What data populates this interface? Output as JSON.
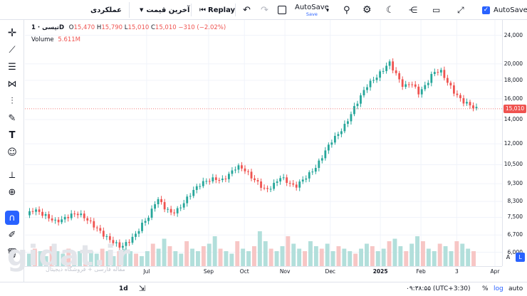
{
  "toolbar": {
    "symbol_search": "عملکردی",
    "price_type": "آخرین قیمت",
    "replay": "Replay",
    "autosave_title": "AutoSave",
    "autosave_sub": "Save",
    "autosave_toggle": "AutoSave"
  },
  "legend": {
    "symbol": "تپسی · 1D",
    "o_label": "O",
    "o_val": "15,470",
    "h_label": "H",
    "h_val": "15,790",
    "l_label": "L",
    "l_val": "15,010",
    "c_label": "C",
    "c_val": "15,010",
    "change": "−310 (−2.02%)",
    "volume_label": "Volume",
    "volume_val": "5.611M"
  },
  "price_axis": {
    "ticks": [
      "24,000",
      "20,000",
      "18,000",
      "16,000",
      "14,000",
      "12,000",
      "10,500",
      "9,300",
      "8,300",
      "7,500",
      "6,700",
      "6,000"
    ],
    "current": "15,010",
    "scale_a": "A",
    "scale_l": "L"
  },
  "time_axis": {
    "ticks": [
      "Jul",
      "Sep",
      "Oct",
      "Nov",
      "Dec",
      "2025",
      "Feb",
      "3",
      "Apr"
    ]
  },
  "bottom": {
    "interval": "1d",
    "clock": "۰۹:۳۸:۵۵ (UTC+3:30)",
    "percent": "%",
    "log": "log",
    "auto": "auto"
  },
  "watermark": {
    "logo": "gidat.ir",
    "subtitle": "مقاله فارسی + فروشگاه دیجیتال"
  },
  "colors": {
    "up": "#26a69a",
    "down": "#ef5350",
    "vol_up": "#b2dfdb",
    "vol_down": "#f7c6c5",
    "accent": "#2962ff"
  },
  "chart_data": {
    "type": "candlestick",
    "x_ticks": [
      "Jul",
      "Sep",
      "Oct",
      "Nov",
      "Dec",
      "2025",
      "Feb",
      "3",
      "Apr"
    ],
    "y_scale": "log",
    "ylim": [
      5800,
      26000
    ],
    "close_path": [
      [
        0,
        7600
      ],
      [
        3,
        7900
      ],
      [
        6,
        7700
      ],
      [
        9,
        7500
      ],
      [
        12,
        7300
      ],
      [
        15,
        7400
      ],
      [
        18,
        7600
      ],
      [
        21,
        7700
      ],
      [
        24,
        7500
      ],
      [
        27,
        7200
      ],
      [
        30,
        6900
      ],
      [
        33,
        6600
      ],
      [
        36,
        6400
      ],
      [
        39,
        6200
      ],
      [
        42,
        6400
      ],
      [
        45,
        6700
      ],
      [
        48,
        7200
      ],
      [
        51,
        7600
      ],
      [
        54,
        8500
      ],
      [
        57,
        8000
      ],
      [
        60,
        7700
      ],
      [
        63,
        7900
      ],
      [
        66,
        8400
      ],
      [
        69,
        8900
      ],
      [
        72,
        9300
      ],
      [
        75,
        9500
      ],
      [
        78,
        9600
      ],
      [
        81,
        9500
      ],
      [
        84,
        9900
      ],
      [
        87,
        10400
      ],
      [
        90,
        10200
      ],
      [
        93,
        9700
      ],
      [
        96,
        9300
      ],
      [
        99,
        8900
      ],
      [
        102,
        9200
      ],
      [
        105,
        9700
      ],
      [
        108,
        9400
      ],
      [
        111,
        9100
      ],
      [
        114,
        9500
      ],
      [
        117,
        9900
      ],
      [
        120,
        10400
      ],
      [
        123,
        11300
      ],
      [
        126,
        12200
      ],
      [
        129,
        12800
      ],
      [
        132,
        13600
      ],
      [
        135,
        14900
      ],
      [
        138,
        16200
      ],
      [
        141,
        17500
      ],
      [
        144,
        18200
      ],
      [
        147,
        19100
      ],
      [
        150,
        20200
      ],
      [
        153,
        18600
      ],
      [
        156,
        17200
      ],
      [
        159,
        17800
      ],
      [
        162,
        16600
      ],
      [
        165,
        17400
      ],
      [
        168,
        18900
      ],
      [
        171,
        19200
      ],
      [
        174,
        17800
      ],
      [
        177,
        16600
      ],
      [
        180,
        15800
      ],
      [
        183,
        15400
      ],
      [
        186,
        15010
      ]
    ],
    "volume_relative": [
      0.25,
      0.35,
      0.3,
      0.2,
      0.4,
      0.3,
      0.25,
      0.35,
      0.2,
      0.3,
      0.4,
      0.3,
      0.25,
      0.35,
      0.3,
      0.2,
      0.3,
      0.35,
      0.3,
      0.25,
      0.2,
      0.3,
      0.45,
      0.35,
      0.55,
      0.4,
      0.3,
      0.25,
      0.5,
      0.35,
      0.3,
      0.4,
      0.45,
      0.6,
      0.35,
      0.3,
      0.25,
      0.5,
      0.35,
      0.3,
      0.4,
      0.7,
      0.5,
      0.35,
      0.3,
      0.4,
      0.6,
      0.45,
      0.35,
      0.3,
      0.5,
      0.4,
      0.35,
      0.45,
      0.3,
      0.4,
      0.35,
      0.3,
      0.25,
      0.35,
      0.45,
      0.4,
      0.3,
      0.35,
      0.5,
      0.55,
      0.4,
      0.3,
      0.45,
      0.6,
      0.5,
      0.35,
      0.3,
      0.45,
      0.4,
      0.3,
      0.5,
      0.45,
      0.35,
      0.3
    ]
  }
}
